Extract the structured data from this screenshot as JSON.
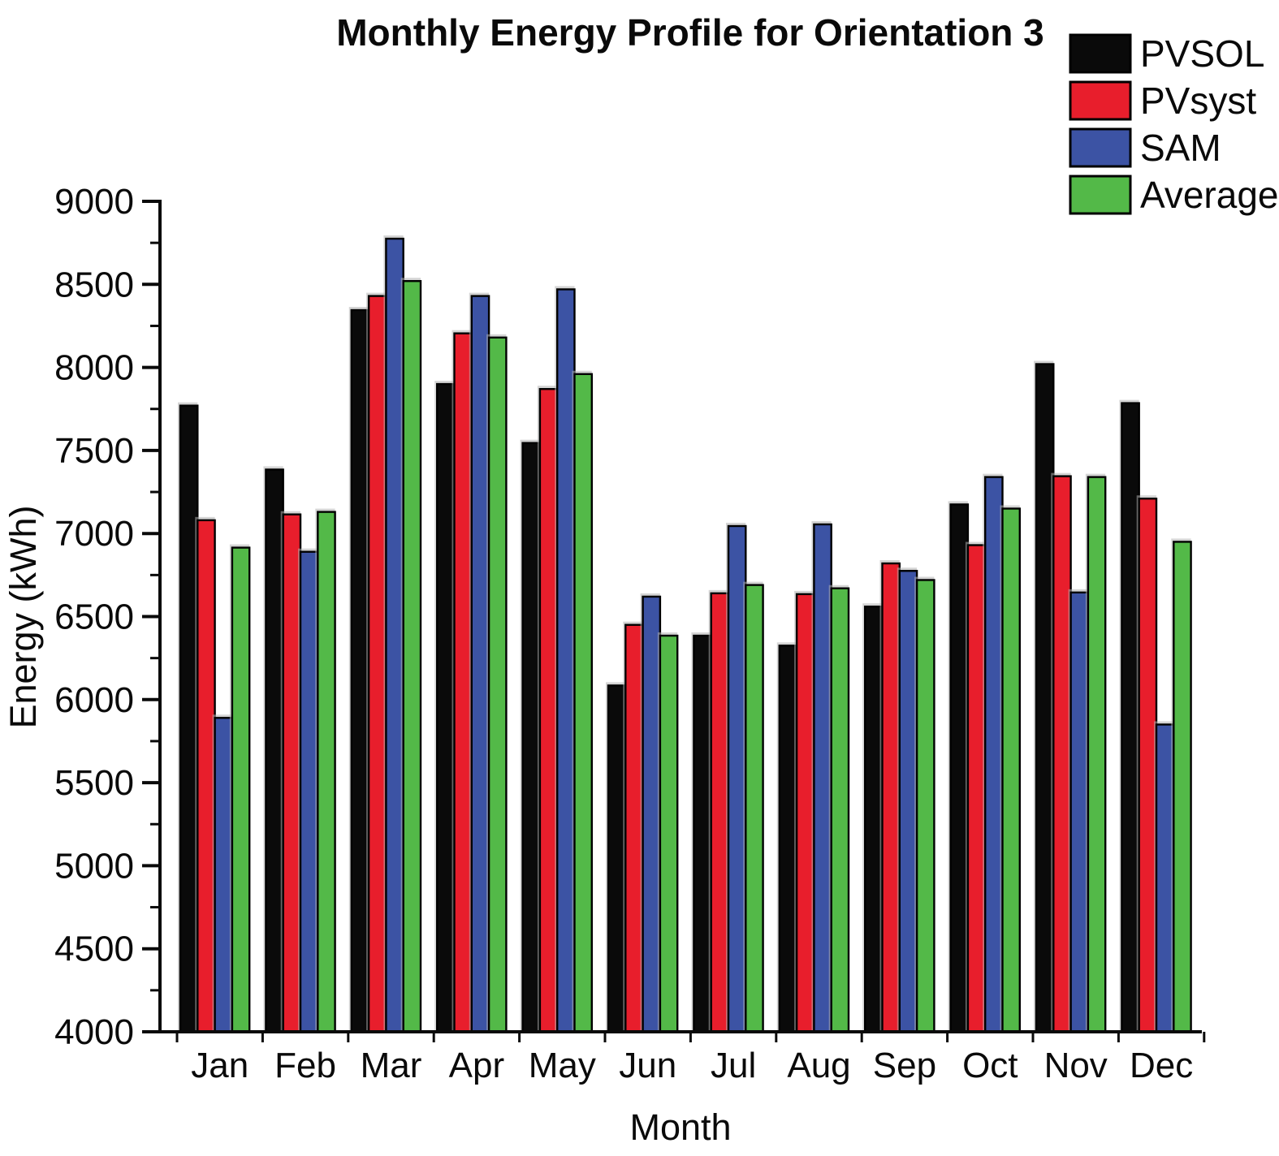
{
  "figure": {
    "background": "#ffffff",
    "text_color": "#0a0a0a"
  },
  "chart_data": {
    "type": "bar",
    "title": "Monthly Energy Profile for Orientation 3",
    "xlabel": "Month",
    "ylabel": "Energy (kWh)",
    "ylim": [
      4000,
      9000
    ],
    "ytick_step": 500,
    "yminor_step": 250,
    "grid": false,
    "legend_position": "top-right",
    "categories": [
      "Jan",
      "Feb",
      "Mar",
      "Apr",
      "May",
      "Jun",
      "Jul",
      "Aug",
      "Sep",
      "Oct",
      "Nov",
      "Dec"
    ],
    "series": [
      {
        "name": "PVSOL",
        "color": "#0a0a0a",
        "values": [
          7770,
          7385,
          8345,
          7900,
          7545,
          6085,
          6385,
          6325,
          6560,
          7175,
          8020,
          7785
        ]
      },
      {
        "name": "PVsyst",
        "color": "#e81e2c",
        "values": [
          7080,
          7115,
          8430,
          8205,
          7870,
          6450,
          6640,
          6635,
          6820,
          6930,
          7345,
          7210
        ]
      },
      {
        "name": "SAM",
        "color": "#3c53a4",
        "values": [
          5890,
          6890,
          8775,
          8430,
          8470,
          6620,
          7045,
          7055,
          6775,
          7340,
          6645,
          5850
        ]
      },
      {
        "name": "Average",
        "color": "#53b948",
        "values": [
          6915,
          7130,
          8520,
          8180,
          7960,
          6385,
          6690,
          6670,
          6720,
          7150,
          7340,
          6950
        ]
      }
    ]
  }
}
